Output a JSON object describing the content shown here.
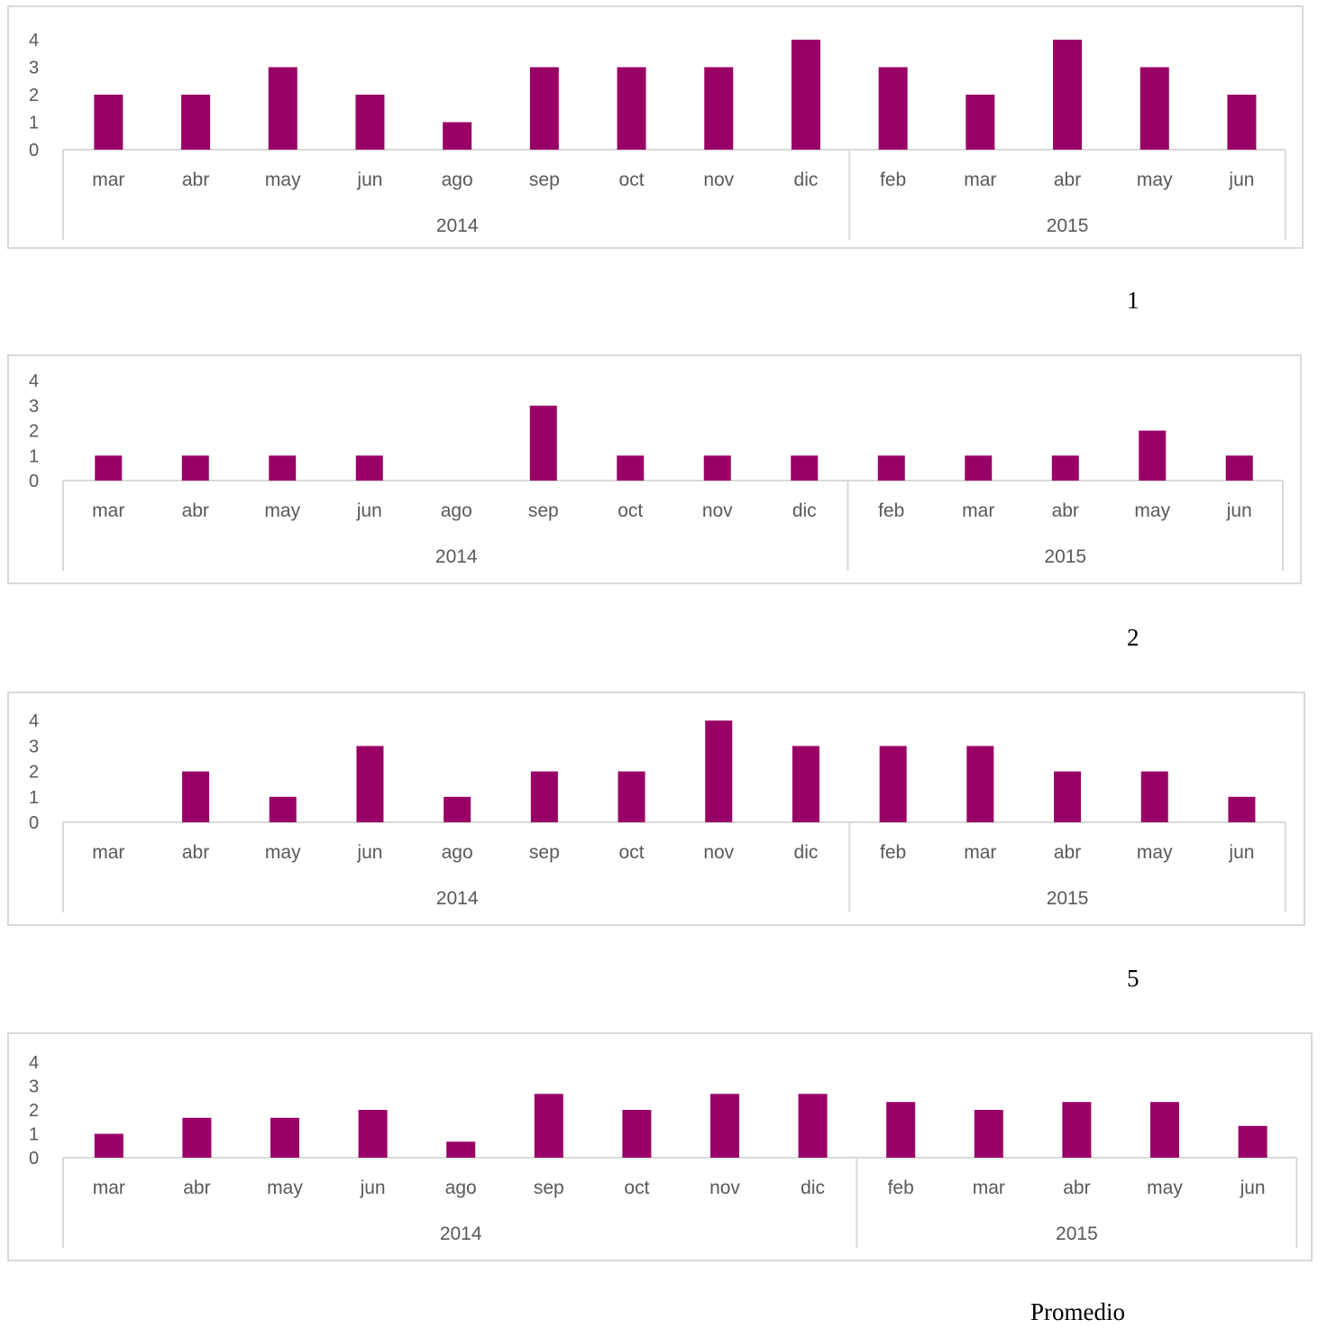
{
  "colors": {
    "bar": "#990066",
    "axis": "#d9d9d9",
    "tick_text": "#595959",
    "caption": "#000000"
  },
  "charts": [
    {
      "caption": "1",
      "chart_data": {
        "type": "bar",
        "groups": [
          {
            "label": "2014",
            "categories": [
              "mar",
              "abr",
              "may",
              "jun",
              "ago",
              "sep",
              "oct",
              "nov",
              "dic"
            ]
          },
          {
            "label": "2015",
            "categories": [
              "feb",
              "mar",
              "abr",
              "may",
              "jun"
            ]
          }
        ],
        "values": [
          2,
          2,
          3,
          2,
          1,
          3,
          3,
          3,
          4,
          3,
          2,
          4,
          3,
          2
        ],
        "yticks": [
          "0",
          "1",
          "2",
          "3",
          "4"
        ],
        "ylim": [
          0,
          4
        ],
        "grid": false,
        "legend": "none"
      }
    },
    {
      "caption": "2",
      "chart_data": {
        "type": "bar",
        "groups": [
          {
            "label": "2014",
            "categories": [
              "mar",
              "abr",
              "may",
              "jun",
              "ago",
              "sep",
              "oct",
              "nov",
              "dic"
            ]
          },
          {
            "label": "2015",
            "categories": [
              "feb",
              "mar",
              "abr",
              "may",
              "jun"
            ]
          }
        ],
        "values": [
          1,
          1,
          1,
          1,
          0,
          3,
          1,
          1,
          1,
          1,
          1,
          1,
          2,
          1
        ],
        "yticks": [
          "0",
          "1",
          "2",
          "3",
          "4"
        ],
        "ylim": [
          0,
          4
        ],
        "grid": false,
        "legend": "none"
      }
    },
    {
      "caption": "5",
      "chart_data": {
        "type": "bar",
        "groups": [
          {
            "label": "2014",
            "categories": [
              "mar",
              "abr",
              "may",
              "jun",
              "ago",
              "sep",
              "oct",
              "nov",
              "dic"
            ]
          },
          {
            "label": "2015",
            "categories": [
              "feb",
              "mar",
              "abr",
              "may",
              "jun"
            ]
          }
        ],
        "values": [
          0,
          2,
          1,
          3,
          1,
          2,
          2,
          4,
          3,
          3,
          3,
          2,
          2,
          1
        ],
        "yticks": [
          "0",
          "1",
          "2",
          "3",
          "4"
        ],
        "ylim": [
          0,
          4
        ],
        "grid": false,
        "legend": "none"
      }
    },
    {
      "caption": "Promedio",
      "chart_data": {
        "type": "bar",
        "groups": [
          {
            "label": "2014",
            "categories": [
              "mar",
              "abr",
              "may",
              "jun",
              "ago",
              "sep",
              "oct",
              "nov",
              "dic"
            ]
          },
          {
            "label": "2015",
            "categories": [
              "feb",
              "mar",
              "abr",
              "may",
              "jun"
            ]
          }
        ],
        "values": [
          1.0,
          1.67,
          1.67,
          2.0,
          0.67,
          2.67,
          2.0,
          2.67,
          2.67,
          2.33,
          2.0,
          2.33,
          2.33,
          1.33
        ],
        "yticks": [
          "0",
          "1",
          "2",
          "3",
          "4"
        ],
        "ylim": [
          0,
          4
        ],
        "grid": false,
        "legend": "none"
      }
    }
  ]
}
